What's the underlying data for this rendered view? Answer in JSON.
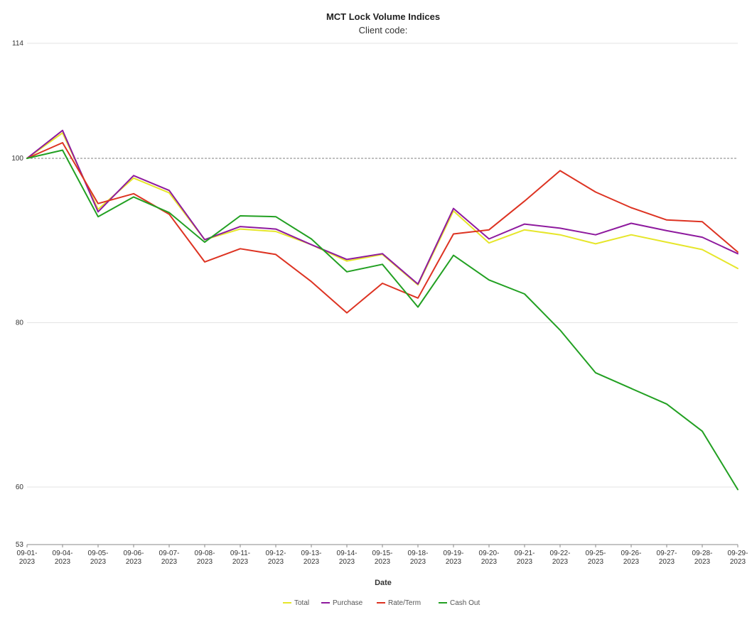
{
  "chart_data": {
    "type": "line",
    "title": "MCT Lock Volume Indices",
    "subtitle": "Client code:",
    "xlabel": "Date",
    "ylabel": "",
    "ylim": [
      53,
      114
    ],
    "yticks": [
      53,
      60,
      80,
      100,
      114
    ],
    "reference_line": {
      "y": 100,
      "style": "dashed"
    },
    "grid": true,
    "legend_position": "bottom",
    "x": [
      "09-01-2023",
      "09-04-2023",
      "09-05-2023",
      "09-06-2023",
      "09-07-2023",
      "09-08-2023",
      "09-11-2023",
      "09-12-2023",
      "09-13-2023",
      "09-14-2023",
      "09-15-2023",
      "09-18-2023",
      "09-19-2023",
      "09-20-2023",
      "09-21-2023",
      "09-22-2023",
      "09-25-2023",
      "09-26-2023",
      "09-27-2023",
      "09-28-2023",
      "09-29-2023"
    ],
    "x_tick_lines": [
      [
        "09-01-",
        "2023"
      ],
      [
        "09-04-",
        "2023"
      ],
      [
        "09-05-",
        "2023"
      ],
      [
        "09-06-",
        "2023"
      ],
      [
        "09-07-",
        "2023"
      ],
      [
        "09-08-",
        "2023"
      ],
      [
        "09-11-",
        "2023"
      ],
      [
        "09-12-",
        "2023"
      ],
      [
        "09-13-",
        "2023"
      ],
      [
        "09-14-",
        "2023"
      ],
      [
        "09-15-",
        "2023"
      ],
      [
        "09-18-",
        "2023"
      ],
      [
        "09-19-",
        "2023"
      ],
      [
        "09-20-",
        "2023"
      ],
      [
        "09-21-",
        "2023"
      ],
      [
        "09-22-",
        "2023"
      ],
      [
        "09-25-",
        "2023"
      ],
      [
        "09-26-",
        "2023"
      ],
      [
        "09-27-",
        "2023"
      ],
      [
        "09-28-",
        "2023"
      ],
      [
        "09-29-",
        "2023"
      ]
    ],
    "series": [
      {
        "name": "Total",
        "color": "#e6e62a",
        "values": [
          100,
          103.1,
          93.8,
          97.6,
          95.8,
          90.1,
          91.4,
          91.1,
          89.5,
          87.5,
          88.3,
          84.6,
          93.6,
          89.7,
          91.3,
          90.7,
          89.6,
          90.7,
          89.8,
          88.9,
          86.6
        ]
      },
      {
        "name": "Purchase",
        "color": "#8e1a9e",
        "values": [
          100,
          103.4,
          93.5,
          97.9,
          96.1,
          90.1,
          91.7,
          91.4,
          89.5,
          87.7,
          88.4,
          84.7,
          93.9,
          90.2,
          92.0,
          91.5,
          90.7,
          92.1,
          91.2,
          90.4,
          88.4
        ]
      },
      {
        "name": "Rate/Term",
        "color": "#dd3322",
        "values": [
          100,
          101.9,
          94.5,
          95.7,
          93.2,
          87.4,
          89.0,
          88.3,
          85.0,
          81.2,
          84.8,
          83.0,
          90.8,
          91.3,
          94.8,
          98.5,
          95.9,
          94.0,
          92.5,
          92.3,
          88.6
        ]
      },
      {
        "name": "Cash Out",
        "color": "#22a022",
        "values": [
          100,
          101.0,
          92.9,
          95.3,
          93.4,
          89.8,
          93.0,
          92.9,
          90.2,
          86.2,
          87.1,
          81.9,
          88.2,
          85.2,
          83.5,
          79.1,
          73.9,
          72.0,
          70.1,
          66.8,
          59.7
        ]
      }
    ]
  }
}
